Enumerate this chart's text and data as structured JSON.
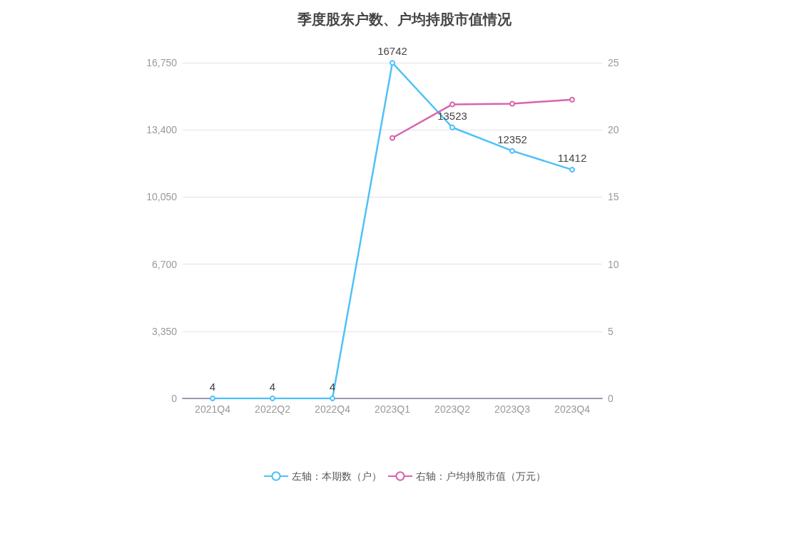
{
  "chart_data": {
    "type": "line",
    "title": "季度股东户数、户均持股市值情况",
    "categories": [
      "2021Q4",
      "2022Q2",
      "2022Q4",
      "2023Q1",
      "2023Q2",
      "2023Q3",
      "2023Q4"
    ],
    "series": [
      {
        "name": "左轴：本期数（户）",
        "color": "#4fc1f7",
        "values": [
          4,
          4,
          4,
          16742,
          13523,
          12352,
          11412
        ],
        "value_labels": [
          "4",
          "4",
          "4",
          "16742",
          "13523",
          "12352",
          "11412"
        ]
      },
      {
        "name": "右轴：户均持股市值（万元）",
        "color": "#d664ad",
        "axis": "y2",
        "values": [
          null,
          null,
          null,
          19.4,
          21.9,
          21.95,
          22.25
        ]
      }
    ],
    "ylim": [
      0,
      16750
    ],
    "yticks": [
      0,
      {
        "value": 3350,
        "label": "3,350"
      },
      {
        "value": 6700,
        "label": "6,700"
      },
      {
        "value": 10050,
        "label": "10,050"
      },
      {
        "value": 13400,
        "label": "13,400"
      },
      {
        "value": 16750,
        "label": "16,750"
      }
    ],
    "y2lim": [
      0,
      25
    ],
    "y2ticks": [
      0,
      5,
      10,
      15,
      20,
      25
    ],
    "grid": "y",
    "legend": "bottom",
    "marker": "circle",
    "line_style": "solid"
  }
}
